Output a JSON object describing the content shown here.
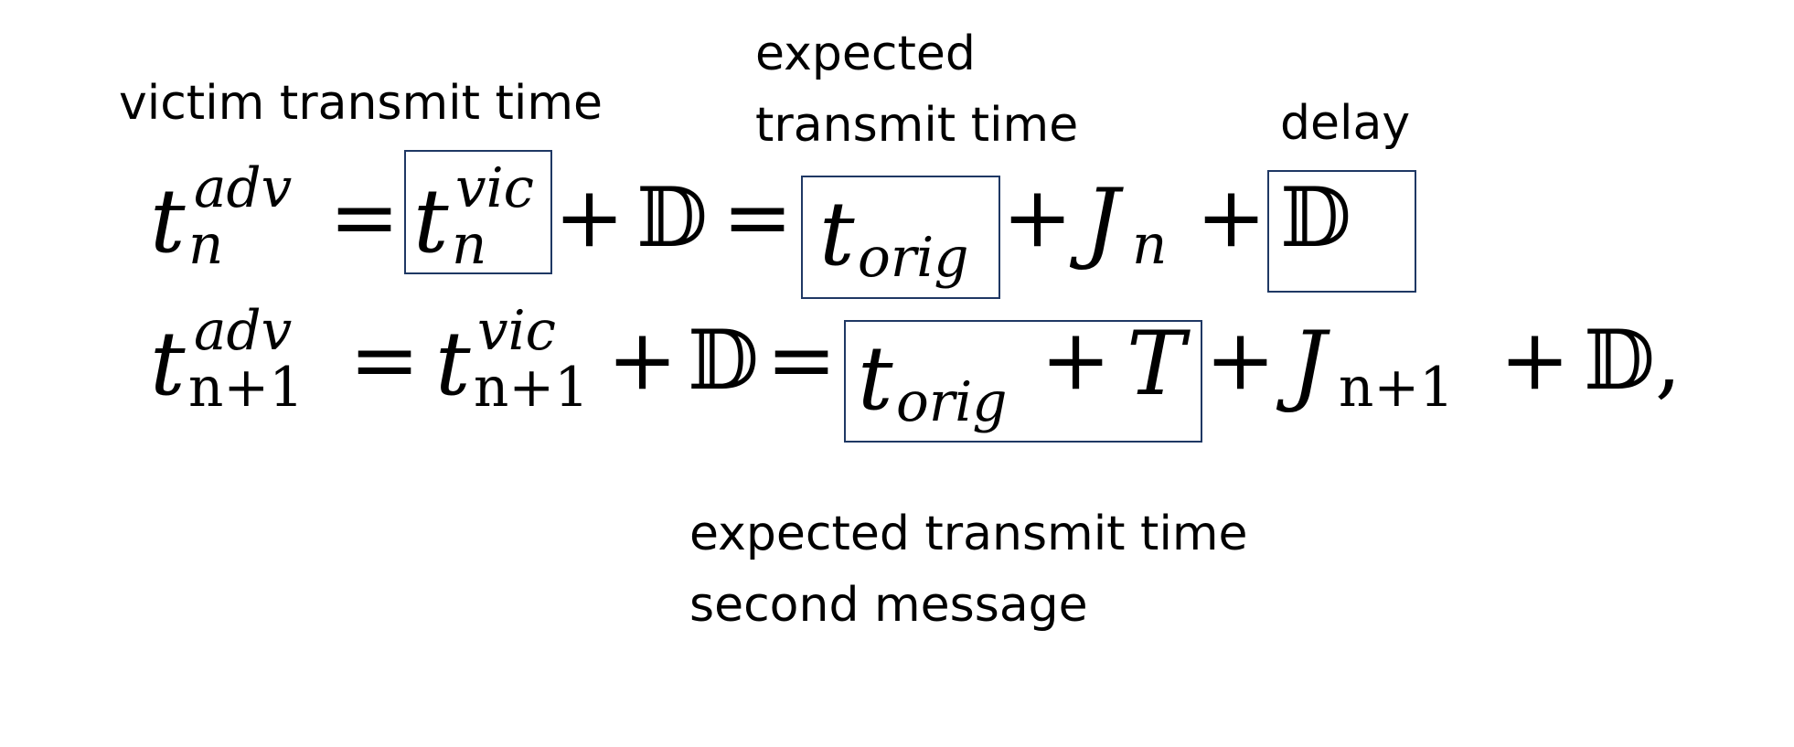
{
  "labels": {
    "victim": "victim transmit time",
    "expected_line1": "expected",
    "expected_line2": "transmit time",
    "delay": "delay",
    "second_line1": "expected transmit time",
    "second_line2": "second message"
  },
  "equation_1": {
    "lhs_base": "t",
    "lhs_sup": "adv",
    "lhs_sub": "n",
    "eq1": "=",
    "vic_base": "t",
    "vic_sup": "vic",
    "vic_sub": "n",
    "plus1": "+",
    "delay_sym": "𝔻",
    "eq2": "=",
    "orig_base": "t",
    "orig_sub": "orig",
    "plus2": "+",
    "jitter_base": "J",
    "jitter_sub": "n",
    "plus3": "+",
    "delay_sym2": "𝔻"
  },
  "equation_2": {
    "lhs_base": "t",
    "lhs_sup": "adv",
    "lhs_sub": "n+1",
    "eq1": "=",
    "vic_base": "t",
    "vic_sup": "vic",
    "vic_sub": "n+1",
    "plus1": "+",
    "delay_sym": "𝔻",
    "eq2": "=",
    "orig_base": "t",
    "orig_sub": "orig",
    "plus_T": "+",
    "period": "T",
    "plus2": "+",
    "jitter_base": "J",
    "jitter_sub": "n+1",
    "plus3": "+",
    "delay_sym2": "𝔻,"
  },
  "colors": {
    "box_border": "#1f3864",
    "text": "#000000",
    "background": "#ffffff"
  }
}
